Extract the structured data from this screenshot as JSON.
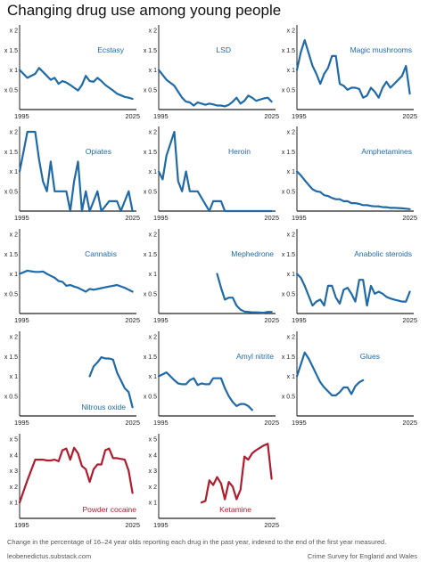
{
  "title": "Changing drug use among young people",
  "caption": "Change in the percentage of 16–24 year olds reporting each drug in the past year, indexed to the end of the first year measured.",
  "credit_left": "leobenedictus.substack.com",
  "credit_right": "Crime Survey for England and Wales",
  "colors": {
    "blue": "#1f6aa8",
    "red": "#b01c2e",
    "axis": "#222222",
    "grid": "#dddddd"
  },
  "chart_data": [
    {
      "type": "line",
      "title": "Ecstasy",
      "color": "blue",
      "xlim": [
        1995,
        2025
      ],
      "ylim": [
        0,
        2
      ],
      "yticks": [
        0.5,
        1,
        1.5,
        2
      ],
      "ytick_labels": [
        "x 0.5",
        "x 1",
        "x 1.5",
        "x 2"
      ],
      "xtick_labels": [
        "1995",
        "2025"
      ],
      "x": [
        1995,
        1997,
        1999,
        2000,
        2001,
        2002,
        2003,
        2004,
        2005,
        2006,
        2007,
        2008,
        2009,
        2010,
        2011,
        2012,
        2013,
        2014,
        2015,
        2016,
        2017,
        2018,
        2019,
        2020,
        2022,
        2023,
        2024
      ],
      "y": [
        1,
        0.8,
        0.9,
        1.05,
        0.95,
        0.85,
        0.75,
        0.8,
        0.65,
        0.72,
        0.68,
        0.62,
        0.55,
        0.48,
        0.62,
        0.85,
        0.72,
        0.7,
        0.8,
        0.72,
        0.62,
        0.55,
        0.48,
        0.4,
        0.32,
        0.3,
        0.27
      ]
    },
    {
      "type": "line",
      "title": "LSD",
      "color": "blue",
      "xlim": [
        1995,
        2025
      ],
      "ylim": [
        0,
        2
      ],
      "yticks": [
        0.5,
        1,
        1.5,
        2
      ],
      "ytick_labels": [
        "x 0.5",
        "x 1",
        "x 1.5",
        "x 2"
      ],
      "xtick_labels": [
        "1995",
        "2025"
      ],
      "x": [
        1995,
        1997,
        1999,
        2000,
        2001,
        2002,
        2003,
        2004,
        2005,
        2006,
        2007,
        2008,
        2009,
        2010,
        2011,
        2012,
        2013,
        2014,
        2015,
        2016,
        2017,
        2018,
        2019,
        2020,
        2022,
        2023,
        2024
      ],
      "y": [
        1,
        0.75,
        0.6,
        0.45,
        0.3,
        0.2,
        0.18,
        0.1,
        0.18,
        0.15,
        0.12,
        0.15,
        0.13,
        0.1,
        0.1,
        0.08,
        0.12,
        0.2,
        0.3,
        0.15,
        0.22,
        0.35,
        0.3,
        0.22,
        0.28,
        0.3,
        0.2
      ]
    },
    {
      "type": "line",
      "title": "Magic mushrooms",
      "color": "blue",
      "xlim": [
        1995,
        2025
      ],
      "ylim": [
        0,
        2
      ],
      "yticks": [
        0.5,
        1,
        1.5,
        2
      ],
      "ytick_labels": [
        "x 0.5",
        "x 1",
        "x 1.5",
        "x 2"
      ],
      "xtick_labels": [
        "1995",
        "2025"
      ],
      "x": [
        1995,
        1996,
        1997,
        1999,
        2000,
        2001,
        2002,
        2003,
        2004,
        2005,
        2006,
        2007,
        2008,
        2009,
        2010,
        2011,
        2012,
        2013,
        2014,
        2015,
        2016,
        2017,
        2018,
        2019,
        2020,
        2022,
        2023,
        2024
      ],
      "y": [
        1,
        1.45,
        1.75,
        1.1,
        0.9,
        0.65,
        0.9,
        1.05,
        1.35,
        1.35,
        0.65,
        0.6,
        0.5,
        0.55,
        0.55,
        0.52,
        0.3,
        0.35,
        0.55,
        0.45,
        0.3,
        0.55,
        0.7,
        0.55,
        0.65,
        0.85,
        1.1,
        0.4
      ]
    },
    {
      "type": "line",
      "title": "Opiates",
      "color": "blue",
      "xlim": [
        1995,
        2025
      ],
      "ylim": [
        0,
        2
      ],
      "yticks": [
        0.5,
        1,
        1.5,
        2
      ],
      "ytick_labels": [
        "x 0.5",
        "x 1",
        "x 1.5",
        "x 2"
      ],
      "xtick_labels": [
        "1995",
        "2025"
      ],
      "x": [
        1995,
        1996,
        1997,
        1999,
        2000,
        2001,
        2002,
        2003,
        2004,
        2006,
        2007,
        2008,
        2009,
        2010,
        2011,
        2012,
        2013,
        2015,
        2016,
        2018,
        2019,
        2020,
        2021,
        2022,
        2023,
        2024
      ],
      "y": [
        1,
        1.5,
        2,
        2,
        1.3,
        0.75,
        0.5,
        1.25,
        0.5,
        0.5,
        0.5,
        0,
        0.75,
        1.25,
        0,
        0.5,
        0,
        0.5,
        0,
        0.25,
        0.25,
        0.25,
        0,
        0.25,
        0.5,
        0
      ]
    },
    {
      "type": "line",
      "title": "Heroin",
      "color": "blue",
      "xlim": [
        1995,
        2025
      ],
      "ylim": [
        0,
        2
      ],
      "yticks": [
        0.5,
        1,
        1.5,
        2
      ],
      "ytick_labels": [
        "x 0.5",
        "x 1",
        "x 1.5",
        "x 2"
      ],
      "xtick_labels": [
        "1995",
        "2025"
      ],
      "x": [
        1995,
        1996,
        1997,
        1999,
        2000,
        2001,
        2002,
        2003,
        2004,
        2005,
        2008,
        2009,
        2011,
        2012,
        2024
      ],
      "y": [
        1,
        0.8,
        1.4,
        2,
        0.75,
        0.5,
        1,
        0.5,
        0.5,
        0.5,
        0,
        0.25,
        0.25,
        0,
        0
      ]
    },
    {
      "type": "line",
      "title": "Amphetamines",
      "color": "blue",
      "xlim": [
        1995,
        2025
      ],
      "ylim": [
        0,
        2
      ],
      "yticks": [
        0.5,
        1,
        1.5,
        2
      ],
      "ytick_labels": [
        "x 0.5",
        "x 1",
        "x 1.5",
        "x 2"
      ],
      "xtick_labels": [
        "1995",
        "2025"
      ],
      "x": [
        1995,
        1996,
        1997,
        1998,
        1999,
        2000,
        2001,
        2002,
        2003,
        2004,
        2005,
        2006,
        2007,
        2008,
        2009,
        2010,
        2011,
        2012,
        2013,
        2014,
        2015,
        2016,
        2017,
        2018,
        2019,
        2020,
        2022,
        2023,
        2024
      ],
      "y": [
        1,
        0.9,
        0.78,
        0.66,
        0.55,
        0.5,
        0.48,
        0.4,
        0.38,
        0.33,
        0.3,
        0.3,
        0.25,
        0.25,
        0.2,
        0.2,
        0.18,
        0.15,
        0.15,
        0.13,
        0.12,
        0.12,
        0.1,
        0.1,
        0.08,
        0.08,
        0.07,
        0.06,
        0.05
      ]
    },
    {
      "type": "line",
      "title": "Cannabis",
      "color": "blue",
      "xlim": [
        1995,
        2025
      ],
      "ylim": [
        0,
        2
      ],
      "yticks": [
        0.5,
        1,
        1.5,
        2
      ],
      "ytick_labels": [
        "x 0.5",
        "x 1",
        "x 1.5",
        "x 2"
      ],
      "xtick_labels": [
        "1995",
        "2025"
      ],
      "x": [
        1995,
        1996,
        1997,
        1999,
        2000,
        2001,
        2002,
        2003,
        2004,
        2005,
        2006,
        2007,
        2008,
        2009,
        2010,
        2011,
        2012,
        2013,
        2014,
        2015,
        2016,
        2017,
        2018,
        2019,
        2020,
        2022,
        2023,
        2024
      ],
      "y": [
        1,
        1.04,
        1.08,
        1.05,
        1.05,
        1.06,
        1,
        0.95,
        0.9,
        0.82,
        0.8,
        0.7,
        0.72,
        0.68,
        0.65,
        0.6,
        0.55,
        0.62,
        0.6,
        0.62,
        0.64,
        0.66,
        0.68,
        0.7,
        0.72,
        0.65,
        0.6,
        0.55
      ]
    },
    {
      "type": "line",
      "title": "Mephedrone",
      "color": "blue",
      "xlim": [
        1995,
        2025
      ],
      "ylim": [
        0,
        2
      ],
      "yticks": [
        0.5,
        1,
        1.5,
        2
      ],
      "ytick_labels": [
        "x 0.5",
        "x 1",
        "x 1.5",
        "x 2"
      ],
      "xtick_labels": [
        "1995",
        "2025"
      ],
      "x": [
        2010,
        2011,
        2012,
        2013,
        2014,
        2015,
        2016,
        2017,
        2018,
        2019,
        2020,
        2022,
        2023,
        2024
      ],
      "y": [
        1,
        0.65,
        0.35,
        0.4,
        0.4,
        0.2,
        0.1,
        0.05,
        0.04,
        0.03,
        0.03,
        0.02,
        0.04,
        0.04
      ]
    },
    {
      "type": "line",
      "title": "Anabolic steroids",
      "color": "blue",
      "xlim": [
        1995,
        2025
      ],
      "ylim": [
        0,
        2
      ],
      "yticks": [
        0.5,
        1,
        1.5,
        2
      ],
      "ytick_labels": [
        "x 0.5",
        "x 1",
        "x 1.5",
        "x 2"
      ],
      "xtick_labels": [
        "1995",
        "2025"
      ],
      "x": [
        1995,
        1996,
        1997,
        1999,
        2000,
        2001,
        2002,
        2003,
        2004,
        2005,
        2006,
        2007,
        2008,
        2009,
        2010,
        2011,
        2012,
        2013,
        2014,
        2015,
        2016,
        2017,
        2018,
        2019,
        2020,
        2022,
        2023,
        2024
      ],
      "y": [
        1,
        0.9,
        0.7,
        0.2,
        0.3,
        0.35,
        0.2,
        0.7,
        0.7,
        0.4,
        0.25,
        0.6,
        0.65,
        0.5,
        0.3,
        0.85,
        0.85,
        0.2,
        0.7,
        0.5,
        0.55,
        0.5,
        0.42,
        0.38,
        0.35,
        0.3,
        0.3,
        0.55
      ]
    },
    {
      "type": "line",
      "title": "Nitrous oxide",
      "color": "blue",
      "xlim": [
        1995,
        2025
      ],
      "ylim": [
        0,
        2
      ],
      "yticks": [
        0.5,
        1,
        1.5,
        2
      ],
      "ytick_labels": [
        "x 0.5",
        "x 1",
        "x 1.5",
        "x 2"
      ],
      "xtick_labels": [
        "1995",
        "2025"
      ],
      "x": [
        2013,
        2014,
        2015,
        2016,
        2017,
        2018,
        2019,
        2020,
        2022,
        2023,
        2024
      ],
      "y": [
        1,
        1.25,
        1.35,
        1.48,
        1.45,
        1.45,
        1.42,
        1.1,
        0.7,
        0.6,
        0.22
      ]
    },
    {
      "type": "line",
      "title": "Amyl nitrite",
      "color": "blue",
      "xlim": [
        1995,
        2025
      ],
      "ylim": [
        0,
        2
      ],
      "yticks": [
        0.5,
        1,
        1.5,
        2
      ],
      "ytick_labels": [
        "x 0.5",
        "x 1",
        "x 1.5",
        "x 2"
      ],
      "xtick_labels": [
        "1995",
        "2025"
      ],
      "x": [
        1995,
        1997,
        1998,
        1999,
        2000,
        2001,
        2002,
        2003,
        2004,
        2005,
        2006,
        2007,
        2008,
        2009,
        2010,
        2011,
        2012,
        2013,
        2014,
        2015,
        2016,
        2017,
        2018,
        2019
      ],
      "y": [
        1,
        1.1,
        1,
        0.9,
        0.82,
        0.8,
        0.8,
        0.9,
        0.95,
        0.78,
        0.82,
        0.8,
        0.8,
        0.95,
        0.95,
        0.95,
        0.7,
        0.5,
        0.35,
        0.25,
        0.3,
        0.3,
        0.25,
        0.15
      ]
    },
    {
      "type": "line",
      "title": "Glues",
      "color": "blue",
      "xlim": [
        1995,
        2025
      ],
      "ylim": [
        0,
        2
      ],
      "yticks": [
        0.5,
        1,
        1.5,
        2
      ],
      "ytick_labels": [
        "x 0.5",
        "x 1",
        "x 1.5",
        "x 2"
      ],
      "xtick_labels": [
        "1995",
        "2025"
      ],
      "x": [
        1995,
        1996,
        1997,
        1998,
        1999,
        2000,
        2001,
        2002,
        2003,
        2004,
        2005,
        2006,
        2007,
        2008,
        2009,
        2010,
        2011,
        2012
      ],
      "y": [
        1,
        1.3,
        1.6,
        1.45,
        1.25,
        1.05,
        0.85,
        0.72,
        0.62,
        0.52,
        0.52,
        0.6,
        0.72,
        0.72,
        0.55,
        0.75,
        0.85,
        0.9
      ]
    },
    {
      "type": "line",
      "title": "Powder cocaine",
      "color": "red",
      "xlim": [
        1995,
        2025
      ],
      "ylim": [
        0,
        5
      ],
      "yticks": [
        1,
        2,
        3,
        4,
        5
      ],
      "ytick_labels": [
        "x 1",
        "x 2",
        "x 3",
        "x 4",
        "x 5"
      ],
      "xtick_labels": [
        "1995",
        "2025"
      ],
      "x": [
        1995,
        1997,
        1999,
        2000,
        2001,
        2002,
        2003,
        2004,
        2005,
        2006,
        2007,
        2008,
        2009,
        2010,
        2011,
        2012,
        2013,
        2014,
        2015,
        2016,
        2017,
        2018,
        2019,
        2020,
        2022,
        2023,
        2024
      ],
      "y": [
        1,
        2.4,
        3.7,
        3.7,
        3.7,
        3.65,
        3.65,
        3.7,
        3.6,
        4.3,
        4.4,
        3.7,
        4.45,
        4.1,
        3.3,
        3.1,
        2.3,
        3.1,
        3.4,
        3.4,
        4.3,
        4.4,
        3.8,
        3.8,
        3.7,
        3,
        1.6
      ]
    },
    {
      "type": "line",
      "title": "Ketamine",
      "color": "red",
      "xlim": [
        1995,
        2025
      ],
      "ylim": [
        0,
        5
      ],
      "yticks": [
        1,
        2,
        3,
        4,
        5
      ],
      "ytick_labels": [
        "x 1",
        "x 2",
        "x 3",
        "x 4",
        "x 5"
      ],
      "xtick_labels": [
        "1995",
        "2025"
      ],
      "x": [
        2006,
        2007,
        2008,
        2009,
        2010,
        2011,
        2012,
        2013,
        2014,
        2015,
        2016,
        2017,
        2018,
        2019,
        2020,
        2022,
        2023,
        2024
      ],
      "y": [
        1,
        1.1,
        2.4,
        2.1,
        2.6,
        2.2,
        1.2,
        2.3,
        2,
        1.2,
        1.8,
        3.9,
        3.7,
        4.1,
        4.3,
        4.6,
        4.7,
        2.5
      ]
    }
  ]
}
